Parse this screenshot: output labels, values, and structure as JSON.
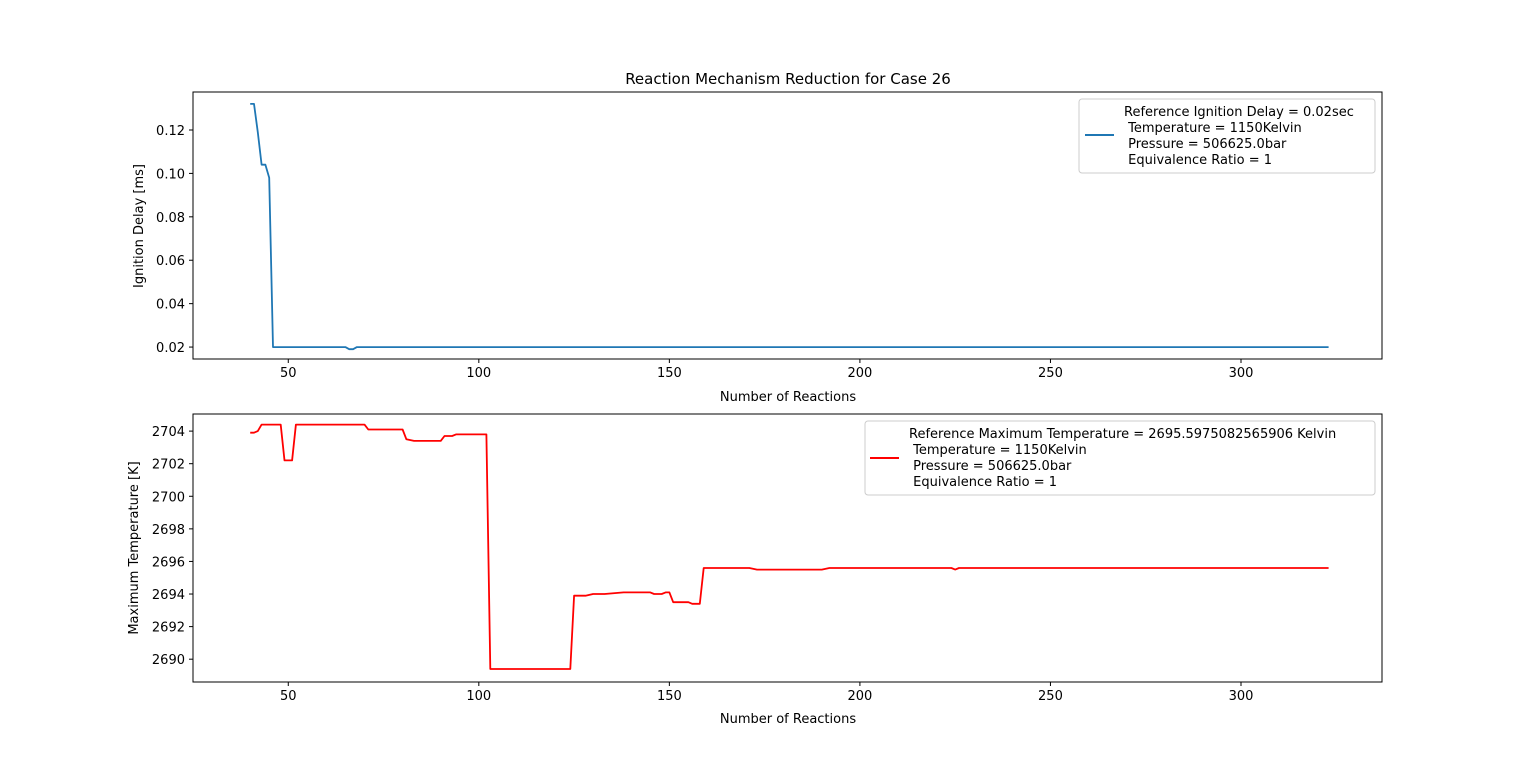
{
  "figure": {
    "title": "Reaction Mechanism Reduction for Case 26"
  },
  "chart_data": [
    {
      "type": "line",
      "title": "Reaction Mechanism Reduction for Case 26",
      "xlabel": "Number of Reactions",
      "ylabel": "Ignition Delay [ms]",
      "xlim": [
        25,
        337
      ],
      "ylim": [
        0.0145,
        0.1375
      ],
      "xticks": [
        50,
        100,
        150,
        200,
        250,
        300
      ],
      "yticks": [
        0.02,
        0.04,
        0.06,
        0.08,
        0.1,
        0.12
      ],
      "ytick_labels": [
        "0.02",
        "0.04",
        "0.06",
        "0.08",
        "0.10",
        "0.12"
      ],
      "grid": false,
      "legend_position": "top-right",
      "series": [
        {
          "name": "Reference Ignition Delay = 0.02sec",
          "color": "#1f77b4",
          "legend_lines": [
            "Reference Ignition Delay = 0.02sec",
            " Temperature = 1150Kelvin",
            " Pressure = 506625.0bar",
            " Equivalence Ratio = 1"
          ],
          "x": [
            40,
            41,
            42,
            43,
            44,
            45,
            46,
            65,
            66,
            67,
            68,
            70,
            323
          ],
          "y": [
            0.132,
            0.132,
            0.119,
            0.104,
            0.104,
            0.098,
            0.02,
            0.02,
            0.019,
            0.019,
            0.02,
            0.02,
            0.02
          ]
        }
      ]
    },
    {
      "type": "line",
      "title": "",
      "xlabel": "Number of Reactions",
      "ylabel": "Maximum Temperature [K]",
      "xlim": [
        25,
        337
      ],
      "ylim": [
        2688.6,
        2705.05
      ],
      "xticks": [
        50,
        100,
        150,
        200,
        250,
        300
      ],
      "yticks": [
        2690,
        2692,
        2694,
        2696,
        2698,
        2700,
        2702,
        2704
      ],
      "ytick_labels": [
        "2690",
        "2692",
        "2694",
        "2696",
        "2698",
        "2700",
        "2702",
        "2704"
      ],
      "grid": false,
      "legend_position": "top-right",
      "series": [
        {
          "name": "Reference Maximum Temperature = 2695.5975082565906 Kelvin",
          "color": "#ff0000",
          "legend_lines": [
            "Reference Maximum Temperature = 2695.5975082565906 Kelvin",
            " Temperature = 1150Kelvin",
            " Pressure = 506625.0bar",
            " Equivalence Ratio = 1"
          ],
          "x": [
            40,
            41,
            42,
            43,
            44,
            47,
            48,
            49,
            50,
            51,
            52,
            69,
            70,
            71,
            72,
            74,
            80,
            81,
            83,
            90,
            91,
            93,
            94,
            101,
            102,
            103,
            123,
            124,
            125,
            127,
            128,
            130,
            133,
            138,
            140,
            145,
            146,
            148,
            149,
            150,
            151,
            152,
            155,
            156,
            158,
            159,
            170,
            171,
            173,
            185,
            190,
            192,
            224,
            225,
            226,
            262,
            263,
            323
          ],
          "y": [
            2703.9,
            2703.9,
            2704.0,
            2704.4,
            2704.4,
            2704.4,
            2704.4,
            2702.2,
            2702.2,
            2702.2,
            2704.4,
            2704.4,
            2704.4,
            2704.1,
            2704.1,
            2704.1,
            2704.1,
            2703.5,
            2703.4,
            2703.4,
            2703.7,
            2703.7,
            2703.8,
            2703.8,
            2703.8,
            2689.4,
            2689.4,
            2689.4,
            2693.9,
            2693.9,
            2693.9,
            2694.0,
            2694.0,
            2694.1,
            2694.1,
            2694.1,
            2694.0,
            2694.0,
            2694.1,
            2694.1,
            2693.5,
            2693.5,
            2693.5,
            2693.4,
            2693.4,
            2695.6,
            2695.6,
            2695.6,
            2695.5,
            2695.5,
            2695.5,
            2695.6,
            2695.6,
            2695.5,
            2695.6,
            2695.6,
            2695.6,
            2695.6
          ]
        }
      ]
    }
  ]
}
